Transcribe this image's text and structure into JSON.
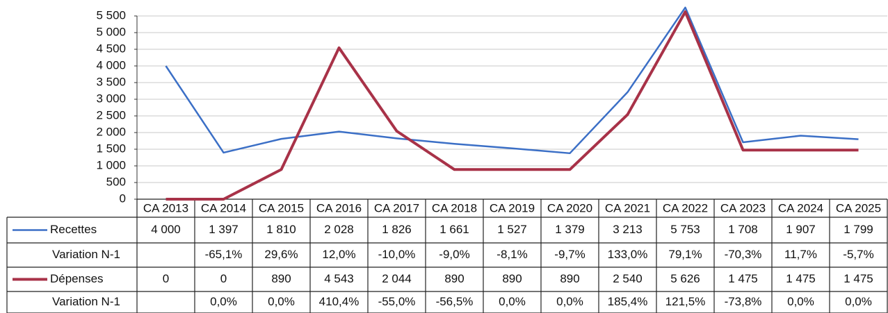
{
  "chart_data": {
    "type": "line",
    "categories": [
      "CA 2013",
      "CA 2014",
      "CA 2015",
      "CA 2016",
      "CA 2017",
      "CA 2018",
      "CA 2019",
      "CA 2020",
      "CA 2021",
      "CA 2022",
      "CA 2023",
      "CA 2024",
      "CA 2025"
    ],
    "series": [
      {
        "name": "Recettes",
        "color": "#3b6fc6",
        "values": [
          4000,
          1397,
          1810,
          2028,
          1826,
          1661,
          1527,
          1379,
          3213,
          5753,
          1708,
          1907,
          1799
        ],
        "value_labels": [
          "4 000",
          "1 397",
          "1 810",
          "2 028",
          "1 826",
          "1 661",
          "1 527",
          "1 379",
          "3 213",
          "5 753",
          "1 708",
          "1 907",
          "1 799"
        ]
      },
      {
        "name": "Dépenses",
        "color": "#a83248",
        "values": [
          0,
          0,
          890,
          4543,
          2044,
          890,
          890,
          890,
          2540,
          5626,
          1475,
          1475,
          1475
        ],
        "value_labels": [
          "0",
          "0",
          "890",
          "4 543",
          "2 044",
          "890",
          "890",
          "890",
          "2 540",
          "5 626",
          "1 475",
          "1 475",
          "1 475"
        ]
      }
    ],
    "variations": [
      {
        "label": "Variation N-1",
        "cells": [
          null,
          "-65,1%",
          "29,6%",
          "12,0%",
          "-10,0%",
          "-9,0%",
          "-8,1%",
          "-9,7%",
          "133,0%",
          "79,1%",
          "-70,3%",
          "11,7%",
          "-5,7%"
        ]
      },
      {
        "label": "Variation N-1",
        "cells": [
          null,
          "0,0%",
          "0,0%",
          "410,4%",
          "-55,0%",
          "-56,5%",
          "0,0%",
          "0,0%",
          "185,4%",
          "121,5%",
          "-73,8%",
          "0,0%",
          "0,0%"
        ]
      }
    ],
    "ylim": [
      0,
      5500
    ],
    "yticks": [
      0,
      500,
      {
        "value": 1000,
        "label": "1 000"
      },
      {
        "value": 1500,
        "label": "1 500"
      },
      {
        "value": 2000,
        "label": "2 000"
      },
      {
        "value": 2500,
        "label": "2 500"
      },
      {
        "value": 3000,
        "label": "3 000"
      },
      {
        "value": 3500,
        "label": "3 500"
      },
      {
        "value": 4000,
        "label": "4 000"
      },
      {
        "value": 4500,
        "label": "4 500"
      },
      {
        "value": 5000,
        "label": "5 000"
      },
      {
        "value": 5500,
        "label": "5 500"
      }
    ],
    "grid": true
  }
}
